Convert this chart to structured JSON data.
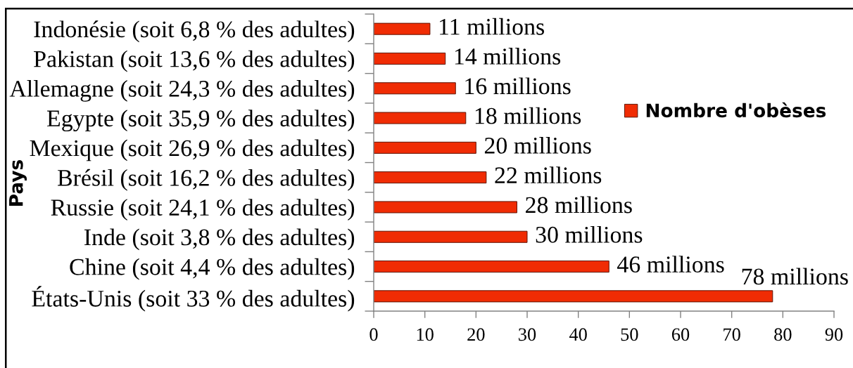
{
  "chart_data": {
    "type": "bar",
    "orientation": "horizontal",
    "categories": [
      "Indonésie (soit 6,8 % des adultes)",
      "Pakistan (soit 13,6 % des adultes)",
      "Allemagne (soit 24,3 % des adultes)",
      "Egypte (soit 35,9 % des adultes)",
      "Mexique (soit 26,9 % des adultes)",
      "Brésil (soit 16,2 % des adultes)",
      "Russie (soit 24,1 % des adultes)",
      "Inde (soit 3,8 % des adultes)",
      "Chine (soit 4,4 % des adultes)",
      "États-Unis (soit 33 % des adultes)"
    ],
    "series": [
      {
        "name": "Nombre d'obèses",
        "color": "#f02c04",
        "values": [
          11,
          14,
          16,
          18,
          20,
          22,
          28,
          30,
          46,
          78
        ],
        "value_labels": [
          "11 millions",
          "14 millions",
          "16 millions",
          "18 millions",
          "20 millions",
          "22 millions",
          "28 millions",
          "30 millions",
          "46 millions",
          "78 millions"
        ]
      }
    ],
    "ylabel": "Pays",
    "xlim": [
      0,
      90
    ],
    "xticks": [
      0,
      10,
      20,
      30,
      40,
      50,
      60,
      70,
      80,
      90
    ],
    "grid": false,
    "legend": "right"
  }
}
